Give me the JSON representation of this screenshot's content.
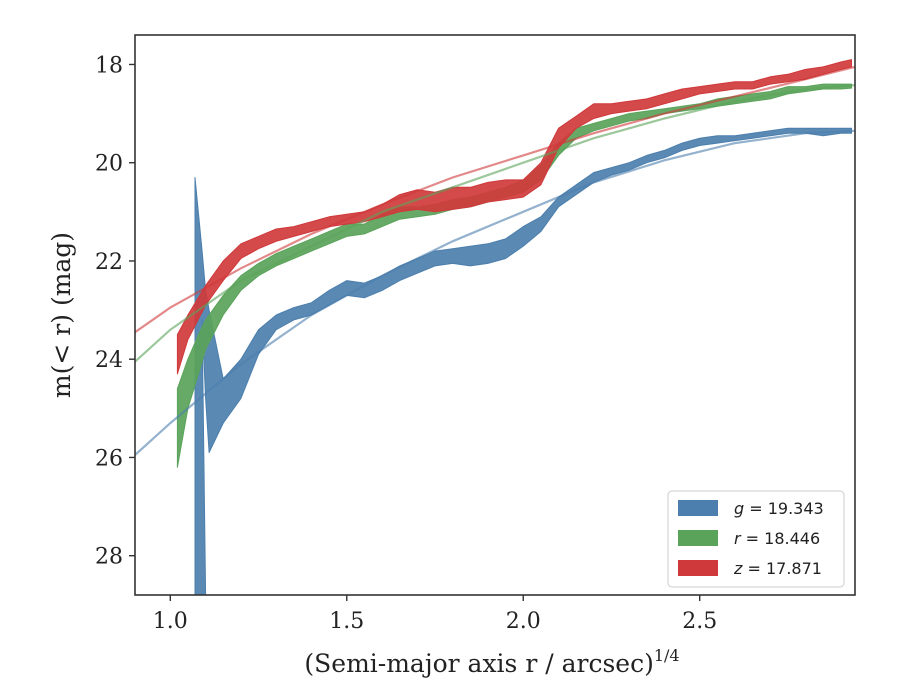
{
  "chart_data": {
    "type": "area",
    "xlabel": "(Semi-major axis r / arcsec)",
    "xlabel_sup": "1/4",
    "ylabel": "m(< r) (mag)",
    "xlim": [
      0.9,
      2.94
    ],
    "ylim": [
      28.8,
      17.4
    ],
    "y_inverted": true,
    "xticks": [
      {
        "v": 1.0,
        "label": "1.0"
      },
      {
        "v": 1.5,
        "label": "1.5"
      },
      {
        "v": 2.0,
        "label": "2.0"
      },
      {
        "v": 2.5,
        "label": "2.5"
      }
    ],
    "yticks": [
      {
        "v": 18,
        "label": "18"
      },
      {
        "v": 20,
        "label": "20"
      },
      {
        "v": 22,
        "label": "22"
      },
      {
        "v": 24,
        "label": "24"
      },
      {
        "v": 26,
        "label": "26"
      },
      {
        "v": 28,
        "label": "28"
      }
    ],
    "legend_position": "lower-right",
    "series": [
      {
        "name": "g = 19.343",
        "legend_var": "g",
        "legend_value": "19.343",
        "color": "#4c7fad",
        "band": [
          [
            1.07,
            20.3,
            20.3
          ],
          [
            1.09,
            21.8,
            23.2
          ],
          [
            1.1,
            22.6,
            24.8
          ],
          [
            1.11,
            23.0,
            25.9
          ],
          [
            1.15,
            24.4,
            25.3
          ],
          [
            1.2,
            24.0,
            24.8
          ],
          [
            1.25,
            23.4,
            23.9
          ],
          [
            1.3,
            23.1,
            23.4
          ],
          [
            1.35,
            22.95,
            23.2
          ],
          [
            1.4,
            22.85,
            23.1
          ],
          [
            1.45,
            22.6,
            22.9
          ],
          [
            1.5,
            22.4,
            22.7
          ],
          [
            1.55,
            22.45,
            22.75
          ],
          [
            1.6,
            22.3,
            22.6
          ],
          [
            1.65,
            22.1,
            22.4
          ],
          [
            1.7,
            21.95,
            22.25
          ],
          [
            1.75,
            21.8,
            22.1
          ],
          [
            1.8,
            21.75,
            22.05
          ],
          [
            1.85,
            21.7,
            22.1
          ],
          [
            1.9,
            21.65,
            22.05
          ],
          [
            1.95,
            21.55,
            21.95
          ],
          [
            2.0,
            21.3,
            21.7
          ],
          [
            2.05,
            21.1,
            21.4
          ],
          [
            2.1,
            20.7,
            20.9
          ],
          [
            2.15,
            20.45,
            20.65
          ],
          [
            2.2,
            20.2,
            20.4
          ],
          [
            2.25,
            20.1,
            20.25
          ],
          [
            2.3,
            20.0,
            20.15
          ],
          [
            2.35,
            19.85,
            20.0
          ],
          [
            2.4,
            19.75,
            19.9
          ],
          [
            2.45,
            19.6,
            19.75
          ],
          [
            2.5,
            19.5,
            19.65
          ],
          [
            2.55,
            19.45,
            19.6
          ],
          [
            2.6,
            19.45,
            19.55
          ],
          [
            2.65,
            19.4,
            19.5
          ],
          [
            2.7,
            19.35,
            19.45
          ],
          [
            2.75,
            19.3,
            19.4
          ],
          [
            2.8,
            19.3,
            19.4
          ],
          [
            2.85,
            19.3,
            19.45
          ],
          [
            2.9,
            19.3,
            19.4
          ],
          [
            2.93,
            19.3,
            19.4
          ]
        ],
        "spike_bottom": [
          1.09,
          28.8
        ],
        "fit": [
          [
            0.9,
            25.95
          ],
          [
            1.0,
            25.3
          ],
          [
            1.2,
            24.1
          ],
          [
            1.4,
            23.1
          ],
          [
            1.6,
            22.3
          ],
          [
            1.8,
            21.6
          ],
          [
            2.0,
            21.0
          ],
          [
            2.2,
            20.4
          ],
          [
            2.4,
            19.95
          ],
          [
            2.6,
            19.6
          ],
          [
            2.8,
            19.4
          ],
          [
            2.94,
            19.35
          ]
        ]
      },
      {
        "name": "r = 18.446",
        "legend_var": "r",
        "legend_value": "18.446",
        "color": "#5aa35a",
        "band": [
          [
            1.02,
            24.6,
            26.2
          ],
          [
            1.05,
            24.0,
            25.0
          ],
          [
            1.08,
            23.5,
            24.3
          ],
          [
            1.1,
            23.2,
            23.8
          ],
          [
            1.15,
            22.7,
            23.1
          ],
          [
            1.2,
            22.3,
            22.6
          ],
          [
            1.25,
            22.05,
            22.3
          ],
          [
            1.3,
            21.85,
            22.1
          ],
          [
            1.35,
            21.7,
            21.95
          ],
          [
            1.4,
            21.55,
            21.8
          ],
          [
            1.45,
            21.4,
            21.65
          ],
          [
            1.5,
            21.25,
            21.5
          ],
          [
            1.55,
            21.25,
            21.45
          ],
          [
            1.6,
            21.05,
            21.3
          ],
          [
            1.65,
            20.9,
            21.15
          ],
          [
            1.7,
            20.9,
            21.1
          ],
          [
            1.75,
            20.85,
            21.05
          ],
          [
            1.8,
            20.75,
            20.95
          ],
          [
            1.85,
            20.7,
            20.9
          ],
          [
            1.9,
            20.6,
            20.8
          ],
          [
            1.95,
            20.5,
            20.7
          ],
          [
            2.0,
            20.35,
            20.6
          ],
          [
            2.05,
            20.05,
            20.35
          ],
          [
            2.1,
            19.6,
            19.85
          ],
          [
            2.15,
            19.3,
            19.5
          ],
          [
            2.2,
            19.2,
            19.35
          ],
          [
            2.25,
            19.1,
            19.25
          ],
          [
            2.3,
            19.0,
            19.15
          ],
          [
            2.35,
            18.95,
            19.1
          ],
          [
            2.4,
            18.9,
            19.0
          ],
          [
            2.45,
            18.85,
            18.95
          ],
          [
            2.5,
            18.8,
            18.9
          ],
          [
            2.55,
            18.7,
            18.85
          ],
          [
            2.6,
            18.65,
            18.8
          ],
          [
            2.65,
            18.6,
            18.75
          ],
          [
            2.7,
            18.55,
            18.7
          ],
          [
            2.75,
            18.45,
            18.6
          ],
          [
            2.8,
            18.45,
            18.55
          ],
          [
            2.85,
            18.4,
            18.5
          ],
          [
            2.9,
            18.4,
            18.5
          ],
          [
            2.93,
            18.4,
            18.48
          ]
        ],
        "fit": [
          [
            0.9,
            24.05
          ],
          [
            1.0,
            23.4
          ],
          [
            1.2,
            22.4
          ],
          [
            1.4,
            21.7
          ],
          [
            1.6,
            21.0
          ],
          [
            1.8,
            20.5
          ],
          [
            2.0,
            20.0
          ],
          [
            2.2,
            19.5
          ],
          [
            2.4,
            19.1
          ],
          [
            2.6,
            18.75
          ],
          [
            2.8,
            18.5
          ],
          [
            2.94,
            18.42
          ]
        ]
      },
      {
        "name": "z = 17.871",
        "legend_var": "z",
        "legend_value": "17.871",
        "color": "#d0393b",
        "band": [
          [
            1.02,
            23.5,
            24.3
          ],
          [
            1.05,
            23.1,
            23.6
          ],
          [
            1.1,
            22.5,
            22.9
          ],
          [
            1.15,
            22.0,
            22.4
          ],
          [
            1.2,
            21.65,
            21.95
          ],
          [
            1.25,
            21.5,
            21.75
          ],
          [
            1.3,
            21.35,
            21.6
          ],
          [
            1.35,
            21.3,
            21.5
          ],
          [
            1.4,
            21.2,
            21.4
          ],
          [
            1.45,
            21.1,
            21.3
          ],
          [
            1.5,
            21.05,
            21.25
          ],
          [
            1.55,
            21.0,
            21.2
          ],
          [
            1.6,
            20.85,
            21.1
          ],
          [
            1.65,
            20.65,
            21.0
          ],
          [
            1.7,
            20.55,
            20.95
          ],
          [
            1.75,
            20.6,
            21.0
          ],
          [
            1.8,
            20.5,
            20.95
          ],
          [
            1.85,
            20.5,
            20.9
          ],
          [
            1.9,
            20.4,
            20.8
          ],
          [
            1.95,
            20.35,
            20.75
          ],
          [
            2.0,
            20.35,
            20.7
          ],
          [
            2.05,
            20.0,
            20.45
          ],
          [
            2.1,
            19.3,
            19.7
          ],
          [
            2.15,
            19.05,
            19.3
          ],
          [
            2.2,
            18.8,
            19.1
          ],
          [
            2.25,
            18.8,
            19.0
          ],
          [
            2.3,
            18.75,
            18.95
          ],
          [
            2.35,
            18.7,
            18.9
          ],
          [
            2.4,
            18.6,
            18.8
          ],
          [
            2.45,
            18.5,
            18.7
          ],
          [
            2.5,
            18.45,
            18.6
          ],
          [
            2.55,
            18.4,
            18.55
          ],
          [
            2.6,
            18.35,
            18.5
          ],
          [
            2.65,
            18.35,
            18.5
          ],
          [
            2.7,
            18.25,
            18.4
          ],
          [
            2.75,
            18.2,
            18.35
          ],
          [
            2.8,
            18.1,
            18.3
          ],
          [
            2.85,
            18.05,
            18.2
          ],
          [
            2.9,
            17.95,
            18.1
          ],
          [
            2.93,
            17.9,
            18.05
          ]
        ],
        "fit": [
          [
            0.9,
            23.45
          ],
          [
            1.0,
            22.95
          ],
          [
            1.2,
            22.15
          ],
          [
            1.4,
            21.45
          ],
          [
            1.6,
            20.85
          ],
          [
            1.8,
            20.3
          ],
          [
            2.0,
            19.85
          ],
          [
            2.2,
            19.4
          ],
          [
            2.4,
            19.0
          ],
          [
            2.6,
            18.65
          ],
          [
            2.8,
            18.3
          ],
          [
            2.94,
            18.05
          ]
        ]
      }
    ]
  }
}
